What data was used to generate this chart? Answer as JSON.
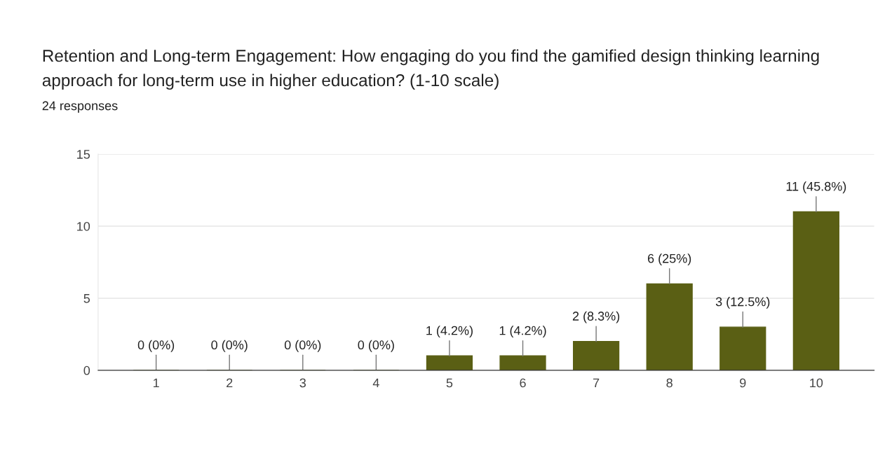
{
  "chart_data": {
    "type": "bar",
    "title": "Retention and Long-term Engagement: How engaging do you find the gamified design thinking learning approach for long-term use in higher education? (1-10 scale)",
    "subtitle": "24 responses",
    "categories": [
      "1",
      "2",
      "3",
      "4",
      "5",
      "6",
      "7",
      "8",
      "9",
      "10"
    ],
    "values": [
      0,
      0,
      0,
      0,
      1,
      1,
      2,
      6,
      3,
      11
    ],
    "value_labels": [
      "0 (0%)",
      "0 (0%)",
      "0 (0%)",
      "0 (0%)",
      "1 (4.2%)",
      "1 (4.2%)",
      "2 (8.3%)",
      "6 (25%)",
      "3 (12.5%)",
      "11 (45.8%)"
    ],
    "color": "#5a5f14",
    "ylim": [
      0,
      15
    ],
    "yticks": [
      0,
      5,
      10,
      15
    ],
    "grid": "y",
    "legend": false
  }
}
